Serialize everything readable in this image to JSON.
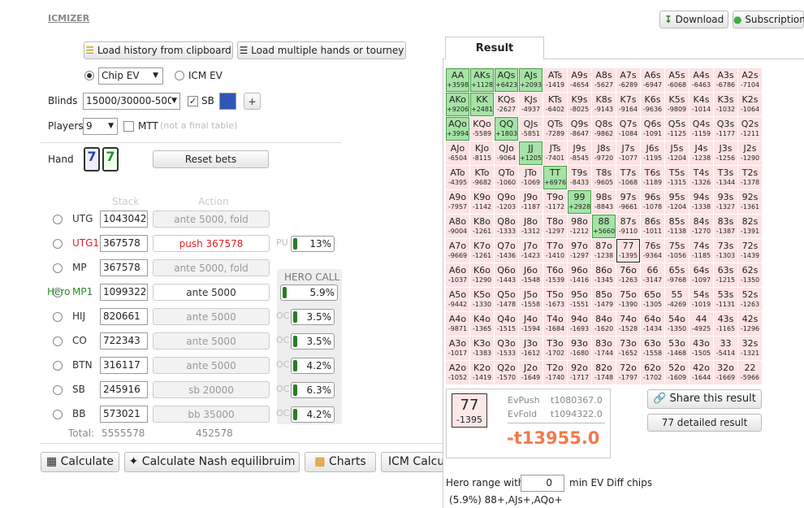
{
  "header": {
    "brand": "ICMIZER",
    "download": "Download",
    "subscription": "Subscription"
  },
  "controls": {
    "load_history": "Load history from clipboard",
    "load_multiple": "Load multiple hands or tourney",
    "chip_ev": "Chip EV",
    "icm_ev": "ICM EV",
    "blinds_label": "Blinds",
    "blinds_value": "15000/30000-500",
    "sb": "SB",
    "players_label": "Players",
    "players_value": "9",
    "mtt": "MTT",
    "mtt_note": "(not a final table)",
    "hand_label": "Hand",
    "cards": [
      "7",
      "7"
    ],
    "reset": "Reset bets"
  },
  "table": {
    "stack_header": "Stack",
    "action_header": "Action",
    "hero_label": "Hero",
    "hero_call": "HERO CALL",
    "players": [
      {
        "pos": "UTG",
        "stack": "1043042",
        "action": "ante 5000, fold"
      },
      {
        "pos": "UTG1",
        "stack": "367578",
        "action": "push 367578",
        "side": "PU",
        "pct": "13%"
      },
      {
        "pos": "MP",
        "stack": "367578",
        "action": "ante 5000, fold"
      },
      {
        "pos": "MP1",
        "stack": "1099322",
        "action": "ante 5000",
        "pct": "5.9%"
      },
      {
        "pos": "HIJ",
        "stack": "820661",
        "action": "ante 5000",
        "side": "OC",
        "pct": "3.5%"
      },
      {
        "pos": "CO",
        "stack": "722343",
        "action": "ante 5000",
        "side": "OC",
        "pct": "3.5%"
      },
      {
        "pos": "BTN",
        "stack": "316117",
        "action": "ante 5000",
        "side": "OC",
        "pct": "4.2%"
      },
      {
        "pos": "SB",
        "stack": "245916",
        "action": "sb 20000",
        "side": "OC",
        "pct": "6.3%"
      },
      {
        "pos": "BB",
        "stack": "573021",
        "action": "bb 35000",
        "side": "OC",
        "pct": "4.2%"
      }
    ],
    "total_label": "Total:",
    "total_stack": "5555578",
    "total_action": "452578"
  },
  "buttons": {
    "calculate": "Calculate",
    "nash": "Calculate Nash equilibruim",
    "charts": "Charts",
    "icm": "ICM Calcu"
  },
  "result": {
    "tab": "Result",
    "grid": [
      [
        [
          "AA",
          "+3598"
        ],
        [
          "AKs",
          "+1128"
        ],
        [
          "AQs",
          "+6423"
        ],
        [
          "AJs",
          "+2093"
        ],
        [
          "ATs",
          "-1419"
        ],
        [
          "A9s",
          "-4654"
        ],
        [
          "A8s",
          "-5627"
        ],
        [
          "A7s",
          "-6289"
        ],
        [
          "A6s",
          "-6947"
        ],
        [
          "A5s",
          "-6068"
        ],
        [
          "A4s",
          "-6463"
        ],
        [
          "A3s",
          "-6786"
        ],
        [
          "A2s",
          "-7104"
        ]
      ],
      [
        [
          "AKo",
          "+9206"
        ],
        [
          "KK",
          "+2481"
        ],
        [
          "KQs",
          "-2627"
        ],
        [
          "KJs",
          "-4937"
        ],
        [
          "KTs",
          "-6402"
        ],
        [
          "K9s",
          "-8025"
        ],
        [
          "K8s",
          "-9143"
        ],
        [
          "K7s",
          "-9164"
        ],
        [
          "K6s",
          "-9636"
        ],
        [
          "K5s",
          "-9809"
        ],
        [
          "K4s",
          "-1014"
        ],
        [
          "K3s",
          "-1032"
        ],
        [
          "K2s",
          "-1064"
        ]
      ],
      [
        [
          "AQo",
          "+3994"
        ],
        [
          "KQo",
          "-5589"
        ],
        [
          "QQ",
          "+1803"
        ],
        [
          "QJs",
          "-5851"
        ],
        [
          "QTs",
          "-7289"
        ],
        [
          "Q9s",
          "-8647"
        ],
        [
          "Q8s",
          "-9862"
        ],
        [
          "Q7s",
          "-1084"
        ],
        [
          "Q6s",
          "-1091"
        ],
        [
          "Q5s",
          "-1125"
        ],
        [
          "Q4s",
          "-1159"
        ],
        [
          "Q3s",
          "-1177"
        ],
        [
          "Q2s",
          "-1211"
        ]
      ],
      [
        [
          "AJo",
          "-6504"
        ],
        [
          "KJo",
          "-8115"
        ],
        [
          "QJo",
          "-9064"
        ],
        [
          "JJ",
          "+1205"
        ],
        [
          "JTs",
          "-7401"
        ],
        [
          "J9s",
          "-8545"
        ],
        [
          "J8s",
          "-9720"
        ],
        [
          "J7s",
          "-1077"
        ],
        [
          "J6s",
          "-1195"
        ],
        [
          "J5s",
          "-1204"
        ],
        [
          "J4s",
          "-1238"
        ],
        [
          "J3s",
          "-1256"
        ],
        [
          "J2s",
          "-1290"
        ]
      ],
      [
        [
          "ATo",
          "-4395"
        ],
        [
          "KTo",
          "-9682"
        ],
        [
          "QTo",
          "-1060"
        ],
        [
          "JTo",
          "-1069"
        ],
        [
          "TT",
          "+6976"
        ],
        [
          "T9s",
          "-8433"
        ],
        [
          "T8s",
          "-9605"
        ],
        [
          "T7s",
          "-1068"
        ],
        [
          "T6s",
          "-1189"
        ],
        [
          "T5s",
          "-1315"
        ],
        [
          "T4s",
          "-1326"
        ],
        [
          "T3s",
          "-1344"
        ],
        [
          "T2s",
          "-1378"
        ]
      ],
      [
        [
          "A9o",
          "-7957"
        ],
        [
          "K9o",
          "-1142"
        ],
        [
          "Q9o",
          "-1203"
        ],
        [
          "J9o",
          "-1187"
        ],
        [
          "T9o",
          "-1172"
        ],
        [
          "99",
          "+2928"
        ],
        [
          "98s",
          "-8843"
        ],
        [
          "97s",
          "-9661"
        ],
        [
          "96s",
          "-1078"
        ],
        [
          "95s",
          "-1204"
        ],
        [
          "94s",
          "-1338"
        ],
        [
          "93s",
          "-1327"
        ],
        [
          "92s",
          "-1361"
        ]
      ],
      [
        [
          "A8o",
          "-9004"
        ],
        [
          "K8o",
          "-1261"
        ],
        [
          "Q8o",
          "-1333"
        ],
        [
          "J8o",
          "-1312"
        ],
        [
          "T8o",
          "-1297"
        ],
        [
          "98o",
          "-1212"
        ],
        [
          "88",
          "+5660"
        ],
        [
          "87s",
          "-9110"
        ],
        [
          "86s",
          "-1011"
        ],
        [
          "85s",
          "-1138"
        ],
        [
          "84s",
          "-1270"
        ],
        [
          "83s",
          "-1387"
        ],
        [
          "82s",
          "-1391"
        ]
      ],
      [
        [
          "A7o",
          "-9669"
        ],
        [
          "K7o",
          "-1261"
        ],
        [
          "Q7o",
          "-1436"
        ],
        [
          "J7o",
          "-1423"
        ],
        [
          "T7o",
          "-1410"
        ],
        [
          "97o",
          "-1297"
        ],
        [
          "87o",
          "-1238"
        ],
        [
          "77",
          "-1395"
        ],
        [
          "76s",
          "-9364"
        ],
        [
          "75s",
          "-1056"
        ],
        [
          "74s",
          "-1185"
        ],
        [
          "73s",
          "-1303"
        ],
        [
          "72s",
          "-1439"
        ]
      ],
      [
        [
          "A6o",
          "-1037"
        ],
        [
          "K6o",
          "-1290"
        ],
        [
          "Q6o",
          "-1443"
        ],
        [
          "J6o",
          "-1548"
        ],
        [
          "T6o",
          "-1539"
        ],
        [
          "96o",
          "-1416"
        ],
        [
          "86o",
          "-1345"
        ],
        [
          "76o",
          "-1263"
        ],
        [
          "66",
          "-3147"
        ],
        [
          "65s",
          "-9768"
        ],
        [
          "64s",
          "-1097"
        ],
        [
          "63s",
          "-1215"
        ],
        [
          "62s",
          "-1350"
        ]
      ],
      [
        [
          "A5o",
          "-9442"
        ],
        [
          "K5o",
          "-1330"
        ],
        [
          "Q5o",
          "-1478"
        ],
        [
          "J5o",
          "-1558"
        ],
        [
          "T5o",
          "-1673"
        ],
        [
          "95o",
          "-1551"
        ],
        [
          "85o",
          "-1479"
        ],
        [
          "75o",
          "-1390"
        ],
        [
          "65o",
          "-1305"
        ],
        [
          "55",
          "-4269"
        ],
        [
          "54s",
          "-1019"
        ],
        [
          "53s",
          "-1131"
        ],
        [
          "52s",
          "-1263"
        ]
      ],
      [
        [
          "A4o",
          "-9871"
        ],
        [
          "K4o",
          "-1365"
        ],
        [
          "Q4o",
          "-1515"
        ],
        [
          "J4o",
          "-1594"
        ],
        [
          "T4o",
          "-1684"
        ],
        [
          "94o",
          "-1693"
        ],
        [
          "84o",
          "-1620"
        ],
        [
          "74o",
          "-1528"
        ],
        [
          "64o",
          "-1434"
        ],
        [
          "54o",
          "-1350"
        ],
        [
          "44",
          "-4925"
        ],
        [
          "43s",
          "-1165"
        ],
        [
          "42s",
          "-1296"
        ]
      ],
      [
        [
          "A3o",
          "-1017"
        ],
        [
          "K3o",
          "-1383"
        ],
        [
          "Q3o",
          "-1533"
        ],
        [
          "J3o",
          "-1612"
        ],
        [
          "T3o",
          "-1702"
        ],
        [
          "93o",
          "-1680"
        ],
        [
          "83o",
          "-1744"
        ],
        [
          "73o",
          "-1652"
        ],
        [
          "63o",
          "-1558"
        ],
        [
          "53o",
          "-1468"
        ],
        [
          "43o",
          "-1505"
        ],
        [
          "33",
          "-5414"
        ],
        [
          "32s",
          "-1321"
        ]
      ],
      [
        [
          "A2o",
          "-1052"
        ],
        [
          "K2o",
          "-1419"
        ],
        [
          "Q2o",
          "-1570"
        ],
        [
          "J2o",
          "-1649"
        ],
        [
          "T2o",
          "-1740"
        ],
        [
          "92o",
          "-1717"
        ],
        [
          "82o",
          "-1748"
        ],
        [
          "72o",
          "-1797"
        ],
        [
          "62o",
          "-1702"
        ],
        [
          "52o",
          "-1609"
        ],
        [
          "42o",
          "-1644"
        ],
        [
          "32o",
          "-1669"
        ],
        [
          "22",
          "-5966"
        ]
      ]
    ],
    "summary": {
      "hand": "77",
      "value": "-1395",
      "ev_push_label": "EvPush",
      "ev_push": "t1080367.0",
      "ev_fold_label": "EvFold",
      "ev_fold": "t1094322.0",
      "diff": "-t13955.0"
    },
    "share": "Share this result",
    "detailed": "77 detailed result",
    "range_prefix": "Hero range with",
    "range_input": "0",
    "range_suffix": "min EV Diff chips",
    "range": "(5.9%) 88+,AJs+,AQo+"
  }
}
